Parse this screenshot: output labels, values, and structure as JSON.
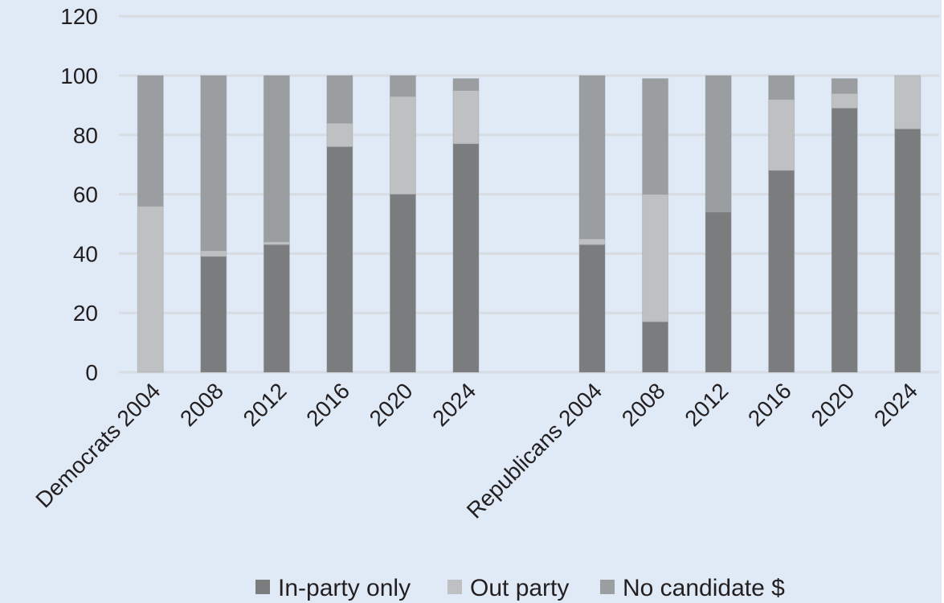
{
  "chart_data": {
    "type": "bar",
    "stacked": true,
    "title": "",
    "xlabel": "",
    "ylabel": "",
    "ylim": [
      0,
      120
    ],
    "yticks": [
      0,
      20,
      40,
      60,
      80,
      100,
      120
    ],
    "grid": true,
    "legend_position": "bottom",
    "categories": [
      "Democrats 2004",
      "2008",
      "2012",
      "2016",
      "2020",
      "2024",
      "",
      "Republicans 2004",
      "2008",
      "2012",
      "2016",
      "2020",
      "2024"
    ],
    "series": [
      {
        "name": "In-party only",
        "color": "#7b7c7e",
        "values": [
          0,
          39,
          43,
          76,
          60,
          77,
          null,
          43,
          17,
          54,
          68,
          89,
          82
        ]
      },
      {
        "name": "Out party",
        "color": "#bfc0c2",
        "values": [
          56,
          2,
          1,
          8,
          33,
          18,
          null,
          2,
          43,
          0,
          24,
          5,
          18
        ]
      },
      {
        "name": "No candidate $",
        "color": "#9a9ea1",
        "values": [
          44,
          59,
          56,
          16,
          7,
          4,
          null,
          55,
          39,
          46,
          8,
          5,
          0
        ]
      }
    ]
  },
  "legend": {
    "items": [
      {
        "label": "In-party only",
        "color": "#7b7c7e"
      },
      {
        "label": "Out party",
        "color": "#bfc0c2"
      },
      {
        "label": "No candidate $",
        "color": "#9a9ea1"
      }
    ]
  },
  "style": {
    "background": "#dfeaf6",
    "gridline": "#d7dce2"
  }
}
